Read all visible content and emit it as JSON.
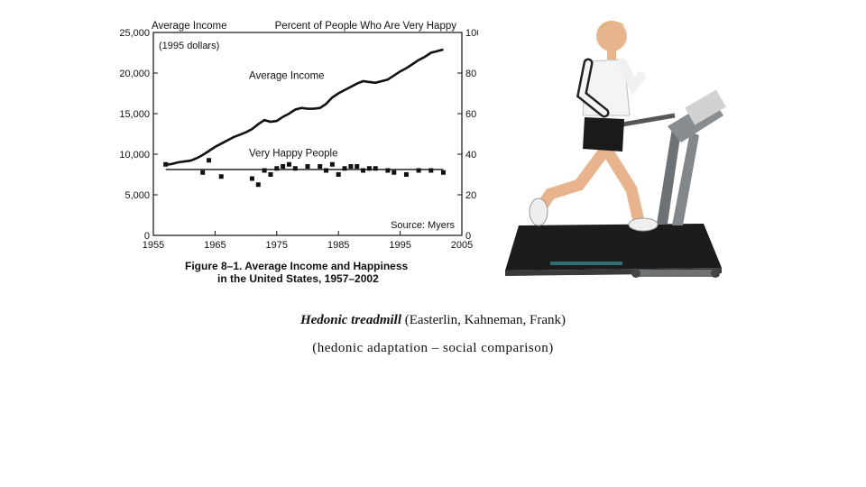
{
  "chart_data": {
    "type": "line",
    "title": "",
    "left_axis_label": "Average Income",
    "left_axis_sublabel": "(1995 dollars)",
    "right_axis_label": "Percent of People Who Are Very Happy",
    "source": "Source: Myers",
    "figure_caption_line1": "Figure 8–1. Average Income and Happiness",
    "figure_caption_line2": "in the United States, 1957–2002",
    "x_ticks": [
      "1955",
      "1965",
      "1975",
      "1985",
      "1995",
      "2005"
    ],
    "x_range": [
      1955,
      2005
    ],
    "y_left_ticks": [
      "0",
      "5,000",
      "10,000",
      "15,000",
      "20,000",
      "25,000"
    ],
    "y_left_range": [
      0,
      25000
    ],
    "y_right_ticks": [
      "0",
      "20",
      "40",
      "60",
      "80",
      "100"
    ],
    "y_right_range": [
      0,
      100
    ],
    "series": [
      {
        "name": "Average Income",
        "axis": "left",
        "style": "line",
        "x": [
          1957,
          1958,
          1959,
          1960,
          1961,
          1962,
          1963,
          1964,
          1965,
          1966,
          1967,
          1968,
          1969,
          1970,
          1971,
          1972,
          1973,
          1974,
          1975,
          1976,
          1977,
          1978,
          1979,
          1980,
          1981,
          1982,
          1983,
          1984,
          1985,
          1986,
          1987,
          1988,
          1989,
          1990,
          1991,
          1992,
          1993,
          1994,
          1995,
          1996,
          1997,
          1998,
          1999,
          2000,
          2001,
          2002
        ],
        "y": [
          8700,
          8800,
          9000,
          9100,
          9200,
          9500,
          9900,
          10400,
          10900,
          11300,
          11700,
          12100,
          12400,
          12700,
          13100,
          13700,
          14200,
          14000,
          14100,
          14600,
          15000,
          15500,
          15700,
          15600,
          15600,
          15700,
          16200,
          17000,
          17500,
          17900,
          18300,
          18700,
          19000,
          18900,
          18800,
          19000,
          19200,
          19700,
          20200,
          20600,
          21100,
          21600,
          22000,
          22500,
          22700,
          22900
        ]
      },
      {
        "name": "Very Happy People",
        "axis": "right",
        "style": "markers",
        "x": [
          1957,
          1963,
          1964,
          1966,
          1971,
          1972,
          1973,
          1974,
          1975,
          1976,
          1977,
          1978,
          1980,
          1982,
          1983,
          1984,
          1985,
          1986,
          1987,
          1988,
          1989,
          1990,
          1991,
          1993,
          1994,
          1996,
          1998,
          2000,
          2002
        ],
        "y": [
          35,
          31,
          37,
          29,
          28,
          25,
          32,
          30,
          33,
          34,
          35,
          33,
          34,
          34,
          32,
          35,
          30,
          33,
          34,
          34,
          32,
          33,
          33,
          32,
          31,
          30,
          32,
          32,
          31
        ]
      },
      {
        "name": "",
        "axis": "right",
        "style": "trend",
        "x": [
          1957,
          2002
        ],
        "y": [
          32.5,
          32.5
        ]
      }
    ]
  },
  "caption": {
    "title_italic": "Hedonic treadmill",
    "title_rest": " (Easterlin, Kahneman, Frank)",
    "subtitle": "(hedonic adaptation – social comparison)"
  },
  "colors": {
    "ink": "#111111",
    "treadmill_frame": "#6f7275",
    "treadmill_belt": "#1c1c1c",
    "shirt": "#f4f4f4",
    "shorts": "#1a1a1a",
    "skin": "#e8b48e"
  }
}
